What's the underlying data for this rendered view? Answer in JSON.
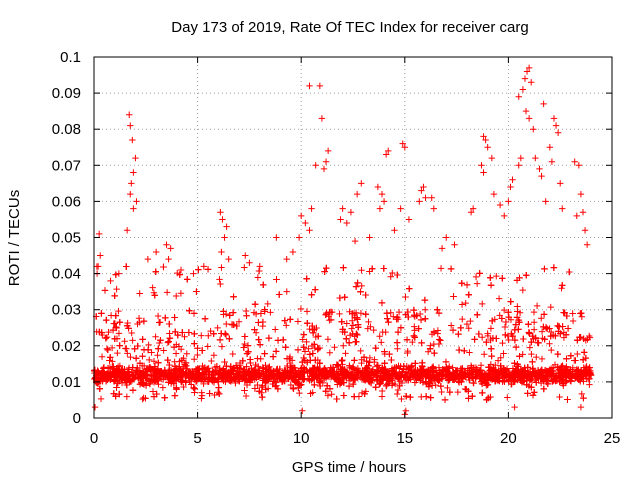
{
  "chart_data": {
    "type": "scatter",
    "title": "Day 173 of 2019, Rate Of TEC Index for receiver carg",
    "xlabel": "GPS time / hours",
    "ylabel": "ROTI / TECUs",
    "xlim": [
      0,
      25
    ],
    "ylim": [
      0,
      0.1
    ],
    "x_ticks": [
      0,
      5,
      10,
      15,
      20,
      25
    ],
    "x_tick_labels": [
      "0",
      "5",
      "10",
      "15",
      "20",
      "25"
    ],
    "y_ticks": [
      0,
      0.01,
      0.02,
      0.03,
      0.04,
      0.05,
      0.06,
      0.07,
      0.08,
      0.09,
      0.1
    ],
    "y_tick_labels": [
      "0",
      "0.01",
      "0.02",
      "0.03",
      "0.04",
      "0.05",
      "0.06",
      "0.07",
      "0.08",
      "0.09",
      "0.1"
    ],
    "grid": true,
    "marker": "+",
    "color": "#ff0000",
    "x_data_range": [
      0,
      24
    ],
    "band": {
      "typical_min": 0.005,
      "typical_max": 0.03,
      "dense_min": 0.008,
      "dense_max": 0.016
    },
    "series": [
      {
        "name": "ROTI",
        "points": [
          [
            1.7,
            0.084
          ],
          [
            1.75,
            0.081
          ],
          [
            1.85,
            0.077
          ],
          [
            2.0,
            0.072
          ],
          [
            1.9,
            0.068
          ],
          [
            1.8,
            0.065
          ],
          [
            1.75,
            0.062
          ],
          [
            1.9,
            0.058
          ],
          [
            2.05,
            0.06
          ],
          [
            1.6,
            0.052
          ],
          [
            0.25,
            0.051
          ],
          [
            0.3,
            0.045
          ],
          [
            0.2,
            0.042
          ],
          [
            0.15,
            0.04
          ],
          [
            3.5,
            0.048
          ],
          [
            3.7,
            0.047
          ],
          [
            3.6,
            0.044
          ],
          [
            6.1,
            0.057
          ],
          [
            6.2,
            0.055
          ],
          [
            6.4,
            0.053
          ],
          [
            6.3,
            0.05
          ],
          [
            6.15,
            0.046
          ],
          [
            6.5,
            0.044
          ],
          [
            10.4,
            0.092
          ],
          [
            10.9,
            0.092
          ],
          [
            11.0,
            0.083
          ],
          [
            11.3,
            0.074
          ],
          [
            11.2,
            0.071
          ],
          [
            11.1,
            0.069
          ],
          [
            10.7,
            0.07
          ],
          [
            10.5,
            0.058
          ],
          [
            10.0,
            0.056
          ],
          [
            10.2,
            0.054
          ],
          [
            10.4,
            0.052
          ],
          [
            9.9,
            0.05
          ],
          [
            8.8,
            0.05
          ],
          [
            12.0,
            0.058
          ],
          [
            12.4,
            0.057
          ],
          [
            12.9,
            0.065
          ],
          [
            12.7,
            0.062
          ],
          [
            11.9,
            0.055
          ],
          [
            12.2,
            0.054
          ],
          [
            13.7,
            0.064
          ],
          [
            13.9,
            0.062
          ],
          [
            14.0,
            0.06
          ],
          [
            13.8,
            0.058
          ],
          [
            14.2,
            0.074
          ],
          [
            14.1,
            0.073
          ],
          [
            14.9,
            0.076
          ],
          [
            15.0,
            0.075
          ],
          [
            14.8,
            0.058
          ],
          [
            15.2,
            0.055
          ],
          [
            15.8,
            0.063
          ],
          [
            15.9,
            0.064
          ],
          [
            16.0,
            0.061
          ],
          [
            15.7,
            0.06
          ],
          [
            16.3,
            0.061
          ],
          [
            16.4,
            0.058
          ],
          [
            18.2,
            0.057
          ],
          [
            18.3,
            0.058
          ],
          [
            18.8,
            0.078
          ],
          [
            18.9,
            0.077
          ],
          [
            19.0,
            0.075
          ],
          [
            19.2,
            0.072
          ],
          [
            18.7,
            0.07
          ],
          [
            18.8,
            0.068
          ],
          [
            19.3,
            0.062
          ],
          [
            20.0,
            0.06
          ],
          [
            20.1,
            0.064
          ],
          [
            20.2,
            0.066
          ],
          [
            20.5,
            0.07
          ],
          [
            20.6,
            0.072
          ],
          [
            20.5,
            0.089
          ],
          [
            20.7,
            0.091
          ],
          [
            20.8,
            0.094
          ],
          [
            20.9,
            0.096
          ],
          [
            21.0,
            0.097
          ],
          [
            21.1,
            0.093
          ],
          [
            20.85,
            0.085
          ],
          [
            21.0,
            0.083
          ],
          [
            21.2,
            0.08
          ],
          [
            21.3,
            0.072
          ],
          [
            21.5,
            0.069
          ],
          [
            21.6,
            0.067
          ],
          [
            21.7,
            0.087
          ],
          [
            22.0,
            0.075
          ],
          [
            22.2,
            0.083
          ],
          [
            22.3,
            0.081
          ],
          [
            22.4,
            0.079
          ],
          [
            22.1,
            0.071
          ],
          [
            22.5,
            0.065
          ],
          [
            23.2,
            0.071
          ],
          [
            23.4,
            0.07
          ],
          [
            23.5,
            0.062
          ],
          [
            23.6,
            0.057
          ],
          [
            23.3,
            0.056
          ],
          [
            23.7,
            0.052
          ],
          [
            23.8,
            0.048
          ],
          [
            21.8,
            0.06
          ],
          [
            22.6,
            0.058
          ],
          [
            19.6,
            0.059
          ],
          [
            19.8,
            0.056
          ],
          [
            17.0,
            0.05
          ],
          [
            17.4,
            0.048
          ],
          [
            16.8,
            0.047
          ],
          [
            7.3,
            0.045
          ],
          [
            7.5,
            0.043
          ],
          [
            8.0,
            0.042
          ],
          [
            4.2,
            0.041
          ],
          [
            4.8,
            0.04
          ],
          [
            5.3,
            0.042
          ],
          [
            9.3,
            0.044
          ],
          [
            9.6,
            0.046
          ],
          [
            3.0,
            0.046
          ],
          [
            2.6,
            0.044
          ],
          [
            1.2,
            0.04
          ],
          [
            0.8,
            0.038
          ],
          [
            14.5,
            0.052
          ],
          [
            13.3,
            0.05
          ],
          [
            12.6,
            0.049
          ],
          [
            15.0,
            0.001
          ],
          [
            15.05,
            0.002
          ],
          [
            10.05,
            0.002
          ],
          [
            0.05,
            0.003
          ],
          [
            23.5,
            0.003
          ],
          [
            20.3,
            0.003
          ]
        ]
      }
    ]
  }
}
